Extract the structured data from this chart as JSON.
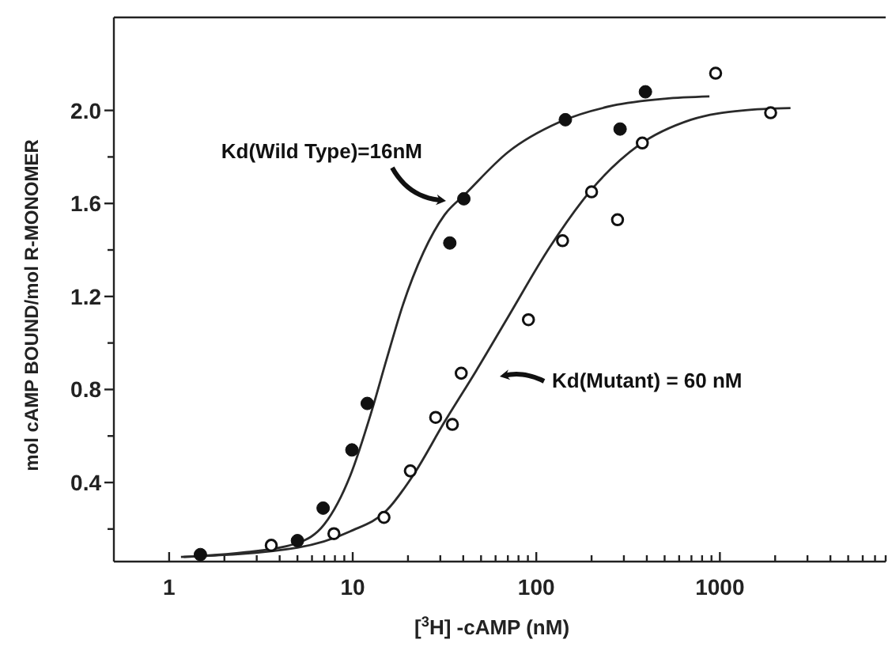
{
  "chart_data": {
    "type": "scatter",
    "xlabel": "[$^{3}$H] -cAMP (nM)",
    "ylabel": "mol cAMP BOUND/mol R-MONOMER",
    "log": "x",
    "marker": "circle",
    "xlim": [
      0.5,
      8000
    ],
    "ylim": [
      0.06,
      2.4
    ],
    "xticks": [
      1,
      {
        "value": 2,
        "label": null
      },
      {
        "value": 3,
        "label": null
      },
      {
        "value": 4,
        "label": null
      },
      {
        "value": 5,
        "label": null
      },
      {
        "value": 6,
        "label": null
      },
      {
        "value": 7,
        "label": null
      },
      {
        "value": 8,
        "label": null
      },
      {
        "value": 9,
        "label": null
      },
      10,
      {
        "value": 20,
        "label": null
      },
      {
        "value": 30,
        "label": null
      },
      {
        "value": 40,
        "label": null
      },
      {
        "value": 50,
        "label": null
      },
      {
        "value": 60,
        "label": null
      },
      {
        "value": 70,
        "label": null
      },
      {
        "value": 80,
        "label": null
      },
      {
        "value": 90,
        "label": null
      },
      100,
      {
        "value": 200,
        "label": null
      },
      {
        "value": 300,
        "label": null
      },
      {
        "value": 400,
        "label": null
      },
      {
        "value": 500,
        "label": null
      },
      {
        "value": 600,
        "label": null
      },
      {
        "value": 700,
        "label": null
      },
      {
        "value": 800,
        "label": null
      },
      {
        "value": 900,
        "label": null
      },
      1000,
      {
        "value": 2000,
        "label": null
      },
      {
        "value": 3000,
        "label": null
      },
      {
        "value": 4000,
        "label": null
      },
      {
        "value": 5000,
        "label": null
      },
      {
        "value": 6000,
        "label": null
      },
      {
        "value": 7000,
        "label": null
      },
      {
        "value": 8000,
        "label": null
      }
    ],
    "yticks": [
      {
        "value": 0.2,
        "label": null
      },
      {
        "value": 0.4,
        "label": "0.4"
      },
      {
        "value": 0.6,
        "label": null
      },
      {
        "value": 0.8,
        "label": "0.8"
      },
      {
        "value": 1.0,
        "label": null
      },
      {
        "value": 1.2,
        "label": "1.2"
      },
      {
        "value": 1.4,
        "label": null
      },
      {
        "value": 1.6,
        "label": "1.6"
      },
      {
        "value": 1.8,
        "label": null
      },
      {
        "value": 2.0,
        "label": "2.0"
      }
    ],
    "series": [
      {
        "type": "line",
        "marker": "none",
        "color": "#2a2a2a",
        "x": [
          1.16,
          2.6,
          5.0,
          7.0,
          9.7,
          12.6,
          15.3,
          18.7,
          24.3,
          31.6,
          41,
          70,
          134,
          259,
          500,
          877
        ],
        "values": [
          0.08,
          0.1,
          0.14,
          0.22,
          0.43,
          0.7,
          0.93,
          1.16,
          1.39,
          1.55,
          1.64,
          1.82,
          1.95,
          2.02,
          2.05,
          2.06
        ]
      },
      {
        "type": "line",
        "marker": "none",
        "color": "#2a2a2a",
        "x": [
          1.2,
          5.0,
          9.7,
          15.3,
          21.3,
          31.6,
          47,
          70,
          118,
          200,
          361,
          696,
          1343,
          2425
        ],
        "values": [
          0.08,
          0.12,
          0.19,
          0.28,
          0.43,
          0.66,
          0.88,
          1.11,
          1.41,
          1.66,
          1.85,
          1.96,
          2.0,
          2.01
        ]
      },
      {
        "color": "#111111",
        "x": [
          1.48,
          5.0,
          6.9,
          9.9,
          12,
          33.8,
          40.3,
          144,
          286,
          393
        ],
        "values": [
          0.09,
          0.15,
          0.29,
          0.54,
          0.74,
          1.43,
          1.62,
          1.96,
          1.92,
          2.08
        ]
      },
      {
        "color": "#111111",
        "x": [
          3.6,
          7.9,
          14.8,
          20.6,
          28.3,
          34.9,
          39,
          90.6,
          139,
          200,
          277,
          378,
          948,
          1890
        ],
        "values": [
          0.13,
          0.18,
          0.25,
          0.45,
          0.68,
          0.65,
          0.87,
          1.1,
          1.44,
          1.65,
          1.53,
          1.86,
          2.16,
          1.99
        ]
      }
    ],
    "annotations": [
      "Kd(Wild Type)=16nM",
      "Kd(Mutant) = 60 nM"
    ]
  }
}
